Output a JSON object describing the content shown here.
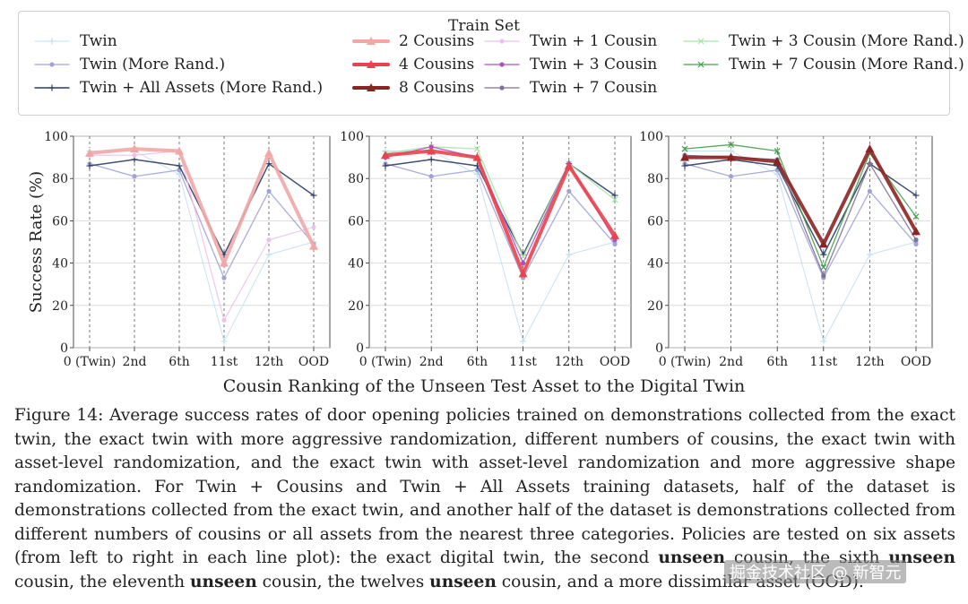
{
  "legend": {
    "title": "Train Set",
    "items": [
      {
        "label": "Twin",
        "color": "#bfe0ef",
        "marker": "plus",
        "width": 1
      },
      {
        "label": "Twin (More Rand.)",
        "color": "#9fa3d6",
        "marker": "dot",
        "width": 1.3
      },
      {
        "label": "Twin + All Assets (More Rand.)",
        "color": "#2c3e66",
        "marker": "plus",
        "width": 1.5
      },
      {
        "label": "2 Cousins",
        "color": "#f2a7a7",
        "marker": "tri",
        "width": 4
      },
      {
        "label": "4 Cousins",
        "color": "#e8434f",
        "marker": "tri",
        "width": 4
      },
      {
        "label": "8 Cousins",
        "color": "#8c2323",
        "marker": "tri",
        "width": 4
      },
      {
        "label": "Twin + 1 Cousin",
        "color": "#ecc2ec",
        "marker": "dot",
        "width": 1.2
      },
      {
        "label": "Twin + 3 Cousin",
        "color": "#b04fc4",
        "marker": "dot",
        "width": 1.3
      },
      {
        "label": "Twin + 7 Cousin",
        "color": "#7f7096",
        "marker": "dot",
        "width": 1.3
      },
      {
        "label": "Twin + 3 Cousin (More Rand.)",
        "color": "#a7e3a7",
        "marker": "x",
        "width": 1.3
      },
      {
        "label": "Twin + 7 Cousin (More Rand.)",
        "color": "#43a047",
        "marker": "x",
        "width": 1.3
      }
    ]
  },
  "chart_data": [
    {
      "type": "line",
      "categories": [
        "0 (Twin)",
        "2nd",
        "6th",
        "11st",
        "12th",
        "OOD"
      ],
      "ylabel": "Success Rate (%)",
      "ylim": [
        0,
        100
      ],
      "yticks": [
        0,
        20,
        40,
        60,
        80,
        100
      ],
      "series": [
        {
          "name": "Twin",
          "values": [
            93,
            93,
            82,
            3,
            44,
            50
          ]
        },
        {
          "name": "Twin (More Rand.)",
          "values": [
            87,
            81,
            84,
            33,
            74,
            49
          ]
        },
        {
          "name": "Twin + All Assets (More Rand.)",
          "values": [
            86,
            89,
            86,
            44,
            87,
            72
          ]
        },
        {
          "name": "Twin + 1 Cousin",
          "values": [
            91,
            91,
            93,
            13,
            51,
            57
          ]
        },
        {
          "name": "2 Cousins",
          "values": [
            92,
            94,
            93,
            40,
            92,
            48
          ]
        }
      ]
    },
    {
      "type": "line",
      "categories": [
        "0 (Twin)",
        "2nd",
        "6th",
        "11st",
        "12th",
        "OOD"
      ],
      "ylabel": "",
      "ylim": [
        0,
        100
      ],
      "yticks": [
        0,
        20,
        40,
        60,
        80,
        100
      ],
      "series": [
        {
          "name": "Twin",
          "values": [
            93,
            93,
            82,
            3,
            44,
            50
          ]
        },
        {
          "name": "Twin (More Rand.)",
          "values": [
            87,
            81,
            84,
            33,
            74,
            49
          ]
        },
        {
          "name": "Twin + All Assets (More Rand.)",
          "values": [
            86,
            89,
            86,
            44,
            87,
            72
          ]
        },
        {
          "name": "Twin + 3 Cousin (More Rand.)",
          "values": [
            92,
            95,
            94,
            43,
            87,
            70
          ]
        },
        {
          "name": "Twin + 3 Cousin",
          "values": [
            90,
            95,
            90,
            40,
            87,
            51
          ]
        },
        {
          "name": "4 Cousins",
          "values": [
            91,
            93,
            90,
            35,
            86,
            53
          ]
        }
      ]
    },
    {
      "type": "line",
      "categories": [
        "0 (Twin)",
        "2nd",
        "6th",
        "11st",
        "12th",
        "OOD"
      ],
      "ylabel": "",
      "ylim": [
        0,
        100
      ],
      "yticks": [
        0,
        20,
        40,
        60,
        80,
        100
      ],
      "series": [
        {
          "name": "Twin",
          "values": [
            93,
            93,
            82,
            3,
            44,
            50
          ]
        },
        {
          "name": "Twin (More Rand.)",
          "values": [
            87,
            81,
            84,
            33,
            74,
            49
          ]
        },
        {
          "name": "Twin + All Assets (More Rand.)",
          "values": [
            86,
            89,
            86,
            44,
            87,
            72
          ]
        },
        {
          "name": "Twin + 7 Cousin (More Rand.)",
          "values": [
            94,
            96,
            93,
            38,
            92,
            62
          ]
        },
        {
          "name": "Twin + 7 Cousin",
          "values": [
            91,
            90,
            89,
            34,
            87,
            51
          ]
        },
        {
          "name": "8 Cousins",
          "values": [
            90,
            90,
            88,
            49,
            94,
            55
          ]
        }
      ]
    }
  ],
  "xlabel": "Cousin Ranking of the Unseen Test Asset to the Digital Twin",
  "caption": {
    "p1": "Figure 14: Average success rates of door opening policies trained on demonstrations collected from the exact twin, the exact twin with more aggressive randomization, different numbers of cousins, the exact twin with asset-level randomization, and the exact twin with asset-level randomization and more aggressive shape randomization. For Twin + Cousins and Twin + All Assets training datasets, half of the dataset is demonstrations collected from the exact twin, and another half of the dataset is demonstrations collected from different numbers of cousins or all assets from the nearest three categories. Policies are tested on six assets (from left to right in each line plot): the exact digital twin, the second ",
    "b1": "unseen",
    "p2": " cousin, the sixth ",
    "b2": "unseen",
    "p3": " cousin, the eleventh ",
    "b3": "unseen",
    "p4": " cousin, the twelves ",
    "b4": "unseen",
    "p5": " cousin, and a more dissimilar asset (OOD)."
  },
  "watermark": "掘金技术社区 @ 新智元"
}
